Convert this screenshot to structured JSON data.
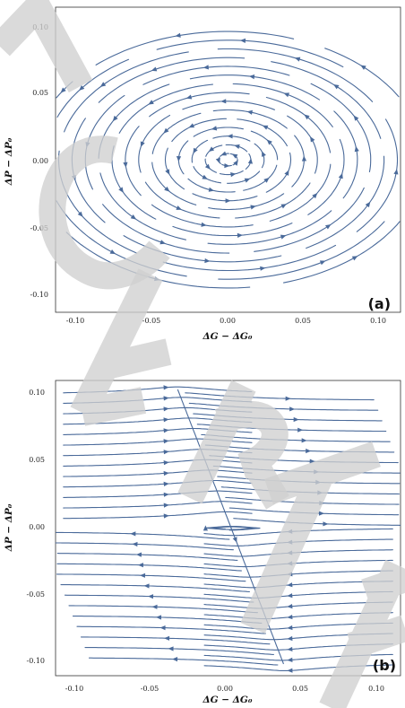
{
  "stream_color": "#4a6a9a",
  "chart_data": [
    {
      "type": "streamplot",
      "panel": "(a)",
      "xlabel": "ΔG − ΔG₀",
      "ylabel": "ΔP − ΔP₀",
      "xlim": [
        -0.11,
        0.11
      ],
      "ylim": [
        -0.11,
        0.11
      ],
      "x_ticks": [
        -0.1,
        -0.05,
        0.0,
        0.05,
        0.1
      ],
      "x_tick_labels": [
        "-0.10",
        "-0.05",
        "0.00",
        "0.05",
        "0.10"
      ],
      "y_ticks": [
        -0.1,
        -0.05,
        0.0,
        0.05,
        0.1
      ],
      "y_tick_labels": [
        "-0.10",
        "-0.05",
        "0.00",
        "0.05",
        "0.10"
      ],
      "field": "closed elliptical orbits around the fixed point (0, 0), counterclockwise",
      "fixed_point": [
        0.0,
        0.0
      ]
    },
    {
      "type": "streamplot",
      "panel": "(b)",
      "xlabel": "ΔG − ΔG₀",
      "ylabel": "ΔP − ΔP₀",
      "xlim": [
        -0.11,
        0.11
      ],
      "ylim": [
        -0.11,
        0.11
      ],
      "x_ticks": [
        -0.1,
        -0.05,
        0.0,
        0.05,
        0.1
      ],
      "x_tick_labels": [
        "-0.10",
        "-0.05",
        "0.00",
        "0.05",
        "0.10"
      ],
      "y_ticks": [
        -0.1,
        -0.05,
        0.0,
        0.05,
        0.1
      ],
      "y_tick_labels": [
        "-0.10",
        "-0.05",
        "0.00",
        "0.05",
        "0.10"
      ],
      "field": "nearly horizontal flow, rightward at top and leftward at bottom, separated by a steep diagonal separatrix",
      "separatrix": {
        "x": [
          -0.03,
          -0.02,
          0.0,
          0.02,
          0.035
        ],
        "y": [
          0.1,
          0.06,
          0.0,
          -0.06,
          -0.1
        ]
      }
    }
  ]
}
